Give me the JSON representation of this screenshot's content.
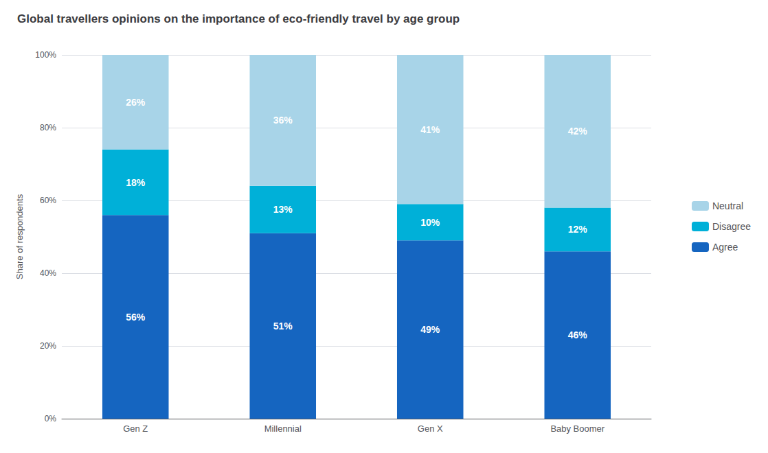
{
  "chart_data": {
    "type": "bar",
    "title": "Global travellers opinions on the importance of eco-friendly travel by age group",
    "categories": [
      "Gen Z",
      "Millennial",
      "Gen X",
      "Baby Boomer"
    ],
    "series": [
      {
        "name": "Agree",
        "color": "#1565C0",
        "values": [
          56,
          51,
          49,
          46
        ],
        "value_labels": [
          "56%",
          "51%",
          "49%",
          "46%"
        ]
      },
      {
        "name": "Disagree",
        "color": "#00B0D8",
        "values": [
          18,
          13,
          10,
          12
        ],
        "value_labels": [
          "18%",
          "13%",
          "10%",
          "12%"
        ]
      },
      {
        "name": "Neutral",
        "color": "#A8D4E8",
        "values": [
          26,
          36,
          41,
          42
        ],
        "value_labels": [
          "26%",
          "36%",
          "41%",
          "42%"
        ]
      }
    ],
    "ylabel": "Share of respondents",
    "ylim": [
      0,
      100
    ],
    "yticks": [
      {
        "value": 0,
        "label": "0%"
      },
      {
        "value": 20,
        "label": "20%"
      },
      {
        "value": 40,
        "label": "40%"
      },
      {
        "value": 60,
        "label": "60%"
      },
      {
        "value": 80,
        "label": "80%"
      },
      {
        "value": 100,
        "label": "100%"
      }
    ],
    "stacked": true,
    "data_labels": true,
    "grid": true,
    "legend": "right"
  }
}
